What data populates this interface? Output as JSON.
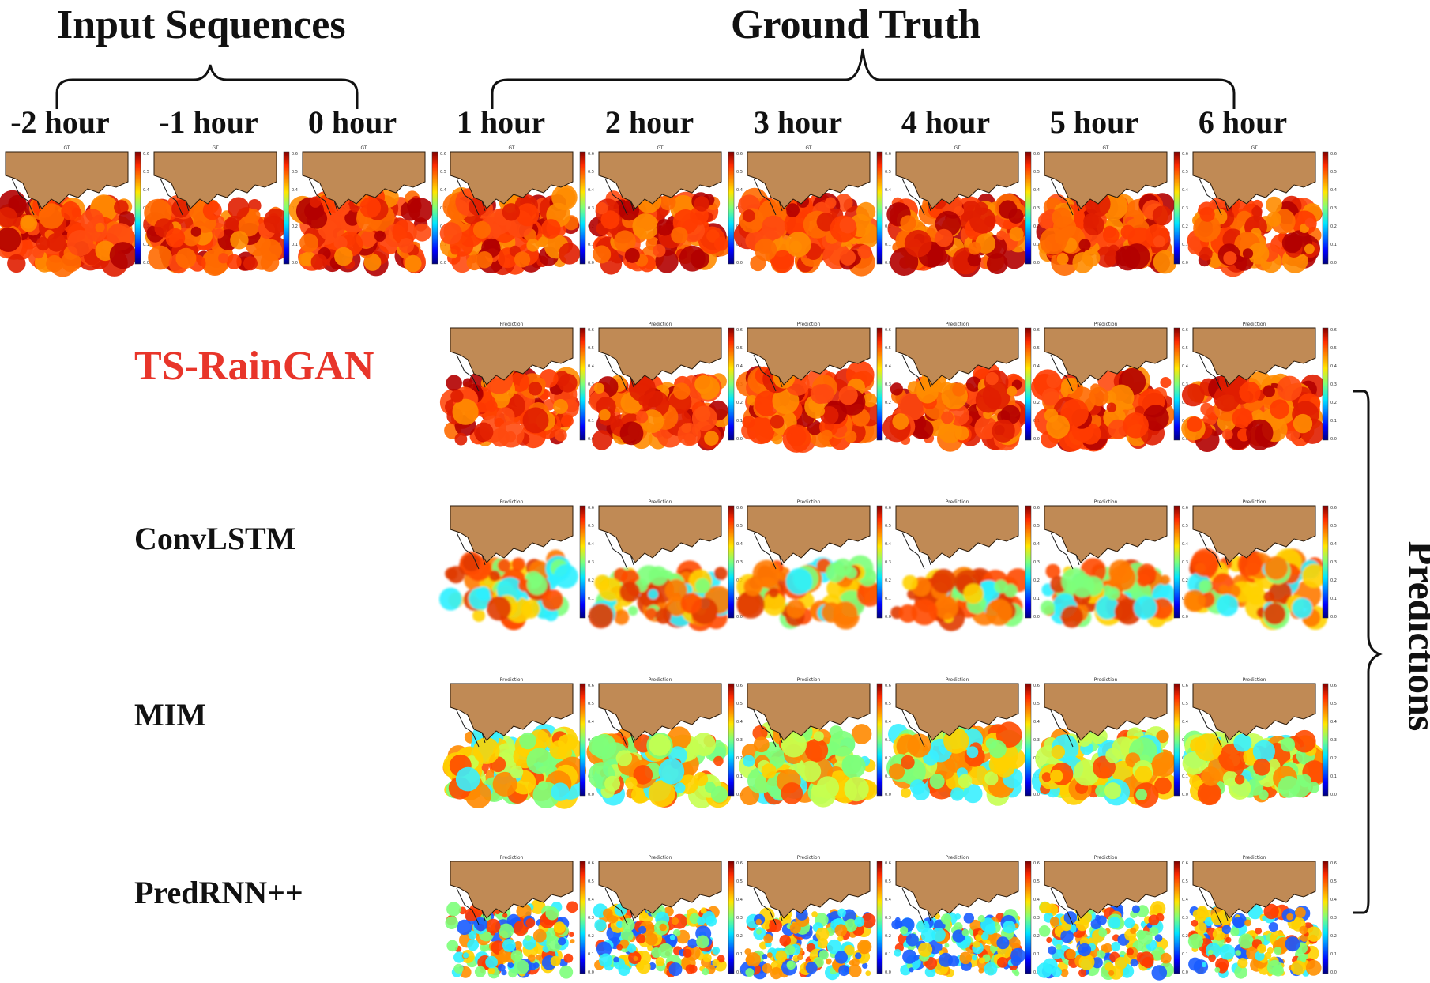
{
  "headings": {
    "input_sequences": "Input Sequences",
    "ground_truth": "Ground Truth",
    "predictions": "Predictions"
  },
  "input_time_labels": [
    "-2 hour",
    "-1 hour",
    "0 hour"
  ],
  "output_time_labels": [
    "1 hour",
    "2 hour",
    "3 hour",
    "4 hour",
    "5 hour",
    "6 hour"
  ],
  "panel_titles": {
    "ground_truth": "GT",
    "prediction": "Prediction"
  },
  "colorbar_ticks": [
    "0.6",
    "0.5",
    "0.4",
    "0.3",
    "0.2",
    "0.1",
    "0.0"
  ],
  "rows": [
    {
      "model": "TS-RainGAN",
      "highlight": true,
      "color": "#e8352a",
      "pattern": "ganlike"
    },
    {
      "model": "ConvLSTM",
      "highlight": false,
      "color": "#111111",
      "pattern": "blurry"
    },
    {
      "model": "MIM",
      "highlight": false,
      "color": "#111111",
      "pattern": "mixed"
    },
    {
      "model": "PredRNN++",
      "highlight": false,
      "color": "#111111",
      "pattern": "noisy"
    }
  ],
  "colors": {
    "land": "#c08a55",
    "text": "#111111",
    "accent": "#e8352a"
  }
}
